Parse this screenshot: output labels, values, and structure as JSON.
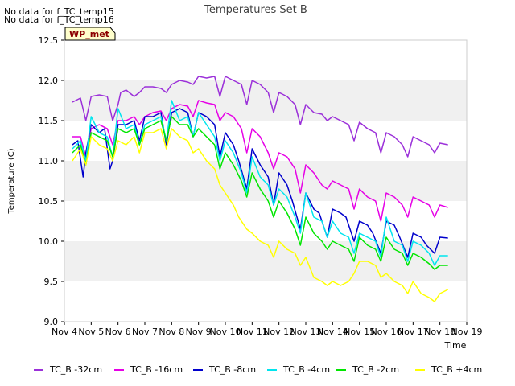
{
  "no_data_messages": [
    "No data for f_TC_temp15",
    "No data for f_TC_temp16"
  ],
  "badge": {
    "label": "WP_met",
    "bg": "#ffffcc",
    "text_color": "#8b0000"
  },
  "chart_data": {
    "type": "line",
    "title": "Temperatures Set B",
    "xlabel": "Time",
    "ylabel": "Temperature (C)",
    "xlim": [
      4,
      19
    ],
    "ylim": [
      9.0,
      12.5
    ],
    "x_ticks": [
      4,
      5,
      6,
      7,
      8,
      9,
      10,
      11,
      12,
      13,
      14,
      15,
      16,
      17,
      18,
      19
    ],
    "x_tick_labels": [
      "Nov 4",
      "Nov 5",
      "Nov 6",
      "Nov 7",
      "Nov 8",
      "Nov 9",
      "Nov 10",
      "Nov 11",
      "Nov 12",
      "Nov 13",
      "Nov 14",
      "Nov 15",
      "Nov 16",
      "Nov 17",
      "Nov 18",
      "Nov 19"
    ],
    "y_ticks": [
      9.0,
      9.5,
      10.0,
      10.5,
      11.0,
      11.5,
      12.0,
      12.5
    ],
    "y_tick_labels": [
      "9.0",
      "9.5",
      "10.0",
      "10.5",
      "11.0",
      "11.5",
      "12.0",
      "12.5"
    ],
    "grid": "horizontal bands",
    "legend_position": "bottom",
    "series": [
      {
        "name": "TC_B -32cm",
        "color": "#9b30d9",
        "x": [
          4.3,
          4.6,
          4.8,
          5.0,
          5.3,
          5.6,
          5.8,
          6.0,
          6.1,
          6.3,
          6.6,
          6.8,
          7.0,
          7.3,
          7.6,
          7.8,
          8.0,
          8.3,
          8.6,
          8.8,
          9.0,
          9.3,
          9.6,
          9.8,
          10.0,
          10.3,
          10.6,
          10.8,
          11.0,
          11.3,
          11.6,
          11.8,
          12.0,
          12.3,
          12.6,
          12.8,
          13.0,
          13.3,
          13.6,
          13.8,
          14.0,
          14.3,
          14.6,
          14.8,
          15.0,
          15.3,
          15.6,
          15.8,
          16.0,
          16.3,
          16.6,
          16.8,
          17.0,
          17.3,
          17.6,
          17.8,
          18.0,
          18.3
        ],
        "y": [
          11.73,
          11.78,
          11.5,
          11.8,
          11.82,
          11.8,
          11.5,
          11.7,
          11.85,
          11.88,
          11.8,
          11.85,
          11.92,
          11.92,
          11.9,
          11.85,
          11.95,
          12.0,
          11.98,
          11.95,
          12.05,
          12.03,
          12.05,
          11.8,
          12.05,
          12.0,
          11.95,
          11.7,
          12.0,
          11.95,
          11.85,
          11.6,
          11.85,
          11.8,
          11.7,
          11.45,
          11.7,
          11.6,
          11.58,
          11.5,
          11.55,
          11.5,
          11.45,
          11.25,
          11.48,
          11.4,
          11.35,
          11.1,
          11.35,
          11.3,
          11.2,
          11.05,
          11.3,
          11.25,
          11.2,
          11.1,
          11.22,
          11.2
        ]
      },
      {
        "name": "TC_B -16cm",
        "color": "#e600e6",
        "x": [
          4.3,
          4.6,
          4.8,
          5.0,
          5.3,
          5.6,
          5.8,
          6.0,
          6.3,
          6.6,
          6.8,
          7.0,
          7.3,
          7.6,
          7.8,
          8.0,
          8.3,
          8.6,
          8.8,
          9.0,
          9.3,
          9.6,
          9.8,
          10.0,
          10.3,
          10.6,
          10.8,
          11.0,
          11.3,
          11.6,
          11.8,
          12.0,
          12.3,
          12.6,
          12.8,
          13.0,
          13.3,
          13.6,
          13.8,
          14.0,
          14.3,
          14.6,
          14.8,
          15.0,
          15.3,
          15.6,
          15.8,
          16.0,
          16.3,
          16.6,
          16.8,
          17.0,
          17.3,
          17.6,
          17.8,
          18.0,
          18.3
        ],
        "y": [
          11.3,
          11.3,
          11.05,
          11.4,
          11.45,
          11.4,
          11.2,
          11.5,
          11.5,
          11.55,
          11.45,
          11.55,
          11.6,
          11.62,
          11.5,
          11.65,
          11.7,
          11.68,
          11.55,
          11.75,
          11.72,
          11.7,
          11.5,
          11.6,
          11.55,
          11.4,
          11.1,
          11.4,
          11.3,
          11.1,
          10.9,
          11.1,
          11.05,
          10.9,
          10.6,
          10.95,
          10.85,
          10.7,
          10.65,
          10.75,
          10.7,
          10.65,
          10.4,
          10.65,
          10.55,
          10.5,
          10.25,
          10.6,
          10.55,
          10.45,
          10.3,
          10.55,
          10.5,
          10.45,
          10.3,
          10.45,
          10.42
        ]
      },
      {
        "name": "TC_B -8cm",
        "color": "#0000cc",
        "x": [
          4.3,
          4.5,
          4.7,
          4.8,
          5.0,
          5.3,
          5.5,
          5.7,
          5.8,
          6.0,
          6.3,
          6.6,
          6.8,
          7.0,
          7.3,
          7.6,
          7.8,
          8.0,
          8.3,
          8.6,
          8.8,
          9.0,
          9.3,
          9.6,
          9.8,
          10.0,
          10.3,
          10.5,
          10.8,
          11.0,
          11.3,
          11.6,
          11.8,
          12.0,
          12.3,
          12.5,
          12.8,
          13.0,
          13.3,
          13.5,
          13.8,
          14.0,
          14.3,
          14.5,
          14.8,
          15.0,
          15.3,
          15.5,
          15.8,
          16.0,
          16.3,
          16.5,
          16.8,
          17.0,
          17.3,
          17.5,
          17.8,
          18.0,
          18.3
        ],
        "y": [
          11.2,
          11.25,
          10.8,
          11.1,
          11.45,
          11.35,
          11.4,
          10.9,
          11.0,
          11.45,
          11.45,
          11.5,
          11.25,
          11.55,
          11.55,
          11.6,
          11.2,
          11.6,
          11.65,
          11.6,
          11.3,
          11.6,
          11.55,
          11.45,
          11.05,
          11.35,
          11.2,
          11.0,
          10.65,
          11.15,
          10.95,
          10.8,
          10.45,
          10.85,
          10.7,
          10.5,
          10.15,
          10.6,
          10.4,
          10.35,
          10.05,
          10.4,
          10.35,
          10.3,
          10.0,
          10.25,
          10.2,
          10.1,
          9.85,
          10.25,
          10.2,
          10.05,
          9.8,
          10.1,
          10.05,
          9.95,
          9.85,
          10.05,
          10.04
        ]
      },
      {
        "name": "TC_B -4cm",
        "color": "#00e5ee",
        "x": [
          4.3,
          4.6,
          4.8,
          5.0,
          5.3,
          5.6,
          5.8,
          6.0,
          6.3,
          6.6,
          6.8,
          7.0,
          7.3,
          7.6,
          7.8,
          8.0,
          8.3,
          8.6,
          8.8,
          9.0,
          9.3,
          9.6,
          9.8,
          10.0,
          10.3,
          10.6,
          10.8,
          11.0,
          11.3,
          11.6,
          11.8,
          12.0,
          12.3,
          12.6,
          12.8,
          13.0,
          13.3,
          13.6,
          13.8,
          14.0,
          14.3,
          14.6,
          14.8,
          15.0,
          15.3,
          15.6,
          15.8,
          16.0,
          16.3,
          16.6,
          16.8,
          17.0,
          17.3,
          17.6,
          17.8,
          18.0,
          18.3
        ],
        "y": [
          11.15,
          11.25,
          11.0,
          11.55,
          11.35,
          11.3,
          11.05,
          11.65,
          11.4,
          11.45,
          11.2,
          11.45,
          11.5,
          11.55,
          11.25,
          11.75,
          11.5,
          11.55,
          11.3,
          11.6,
          11.45,
          11.3,
          11.0,
          11.25,
          11.1,
          10.85,
          10.6,
          11.05,
          10.8,
          10.7,
          10.45,
          10.65,
          10.55,
          10.3,
          10.1,
          10.6,
          10.3,
          10.25,
          10.05,
          10.25,
          10.1,
          10.05,
          9.85,
          10.1,
          10.05,
          10.0,
          9.8,
          10.3,
          10.0,
          9.95,
          9.75,
          10.0,
          9.95,
          9.85,
          9.7,
          9.82,
          9.82
        ]
      },
      {
        "name": "TC_B -2cm",
        "color": "#00e600",
        "x": [
          4.3,
          4.6,
          4.8,
          5.0,
          5.3,
          5.6,
          5.8,
          6.0,
          6.3,
          6.6,
          6.8,
          7.0,
          7.3,
          7.6,
          7.8,
          8.0,
          8.3,
          8.6,
          8.8,
          9.0,
          9.3,
          9.6,
          9.8,
          10.0,
          10.3,
          10.6,
          10.8,
          11.0,
          11.3,
          11.6,
          11.8,
          12.0,
          12.3,
          12.6,
          12.8,
          13.0,
          13.3,
          13.6,
          13.8,
          14.0,
          14.3,
          14.6,
          14.8,
          15.0,
          15.3,
          15.6,
          15.8,
          16.0,
          16.3,
          16.6,
          16.8,
          17.0,
          17.3,
          17.6,
          17.8,
          18.0,
          18.3
        ],
        "y": [
          11.1,
          11.2,
          10.95,
          11.35,
          11.3,
          11.25,
          11.05,
          11.4,
          11.35,
          11.4,
          11.2,
          11.4,
          11.45,
          11.5,
          11.25,
          11.55,
          11.45,
          11.45,
          11.3,
          11.4,
          11.3,
          11.2,
          10.9,
          11.1,
          10.95,
          10.75,
          10.55,
          10.85,
          10.65,
          10.5,
          10.3,
          10.5,
          10.35,
          10.15,
          9.95,
          10.3,
          10.1,
          10.0,
          9.9,
          10.0,
          9.95,
          9.9,
          9.75,
          10.05,
          9.95,
          9.9,
          9.75,
          10.05,
          9.9,
          9.85,
          9.7,
          9.85,
          9.8,
          9.72,
          9.65,
          9.7,
          9.7
        ]
      },
      {
        "name": "TC_B +4cm",
        "color": "#ffff00",
        "x": [
          4.3,
          4.6,
          4.8,
          5.0,
          5.3,
          5.6,
          5.8,
          6.0,
          6.3,
          6.6,
          6.8,
          7.0,
          7.3,
          7.6,
          7.8,
          8.0,
          8.3,
          8.6,
          8.8,
          9.0,
          9.3,
          9.6,
          9.8,
          10.0,
          10.3,
          10.5,
          10.8,
          11.0,
          11.3,
          11.6,
          11.8,
          12.0,
          12.3,
          12.6,
          12.8,
          13.0,
          13.3,
          13.6,
          13.8,
          14.0,
          14.3,
          14.6,
          14.8,
          15.0,
          15.3,
          15.6,
          15.8,
          16.0,
          16.3,
          16.6,
          16.8,
          17.0,
          17.3,
          17.6,
          17.8,
          18.0,
          18.3
        ],
        "y": [
          11.0,
          11.15,
          10.95,
          11.3,
          11.2,
          11.15,
          11.0,
          11.25,
          11.2,
          11.3,
          11.1,
          11.35,
          11.35,
          11.4,
          11.15,
          11.4,
          11.3,
          11.25,
          11.1,
          11.15,
          11.0,
          10.9,
          10.7,
          10.6,
          10.45,
          10.3,
          10.15,
          10.1,
          10.0,
          9.95,
          9.8,
          10.0,
          9.9,
          9.85,
          9.7,
          9.8,
          9.55,
          9.5,
          9.45,
          9.5,
          9.45,
          9.5,
          9.6,
          9.75,
          9.75,
          9.7,
          9.55,
          9.6,
          9.5,
          9.45,
          9.35,
          9.5,
          9.35,
          9.3,
          9.25,
          9.35,
          9.4
        ]
      }
    ]
  }
}
